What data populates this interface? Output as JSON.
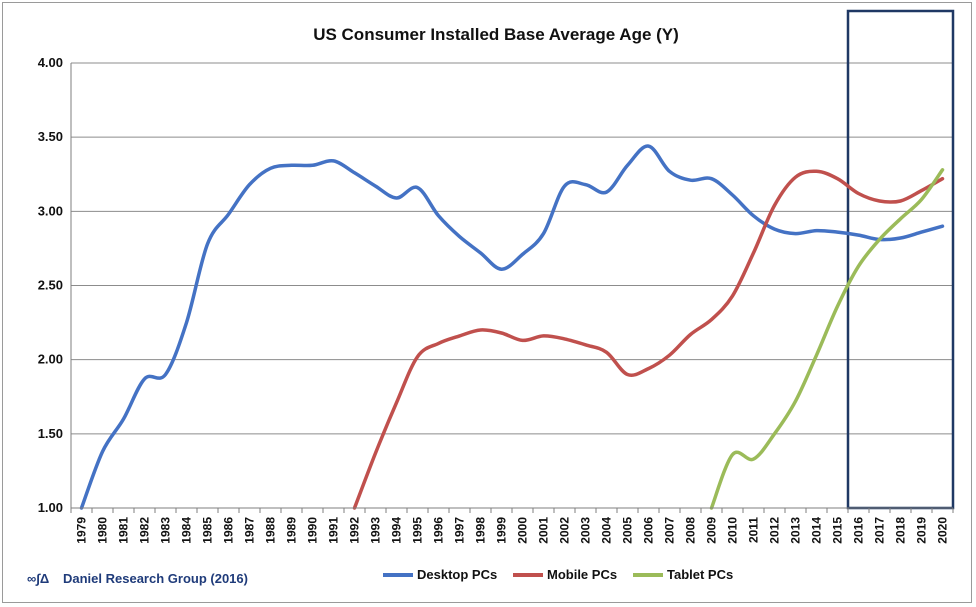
{
  "chart_data": {
    "type": "line",
    "title": "US Consumer Installed Base Average Age (Y)",
    "ylim": [
      1.0,
      4.0
    ],
    "yticks": [
      "1.00",
      "1.50",
      "2.00",
      "2.50",
      "3.00",
      "3.50",
      "4.00"
    ],
    "ytick_values": [
      1.0,
      1.5,
      2.0,
      2.5,
      3.0,
      3.5,
      4.0
    ],
    "x": [
      "1979",
      "1980",
      "1981",
      "1982",
      "1983",
      "1984",
      "1985",
      "1986",
      "1987",
      "1988",
      "1989",
      "1990",
      "1991",
      "1992",
      "1993",
      "1994",
      "1995",
      "1996",
      "1997",
      "1998",
      "1999",
      "2000",
      "2001",
      "2002",
      "2003",
      "2004",
      "2005",
      "2006",
      "2007",
      "2008",
      "2009",
      "2010",
      "2011",
      "2012",
      "2013",
      "2014",
      "2015",
      "2016",
      "2017",
      "2018",
      "2019",
      "2020"
    ],
    "grid": "horizontal",
    "legend_placement": "bottom",
    "highlight_range": [
      "2016",
      "2020"
    ],
    "credit": "Daniel Research Group (2016)",
    "credit_logo": "∞∫Δ",
    "series": [
      {
        "name": "Desktop PCs",
        "color": "#4472c4",
        "values": [
          1.0,
          1.38,
          1.6,
          1.87,
          1.9,
          2.25,
          2.78,
          2.98,
          3.18,
          3.29,
          3.31,
          3.31,
          3.34,
          3.26,
          3.17,
          3.09,
          3.16,
          2.97,
          2.83,
          2.72,
          2.61,
          2.71,
          2.85,
          3.17,
          3.18,
          3.13,
          3.31,
          3.44,
          3.27,
          3.21,
          3.22,
          3.11,
          2.97,
          2.88,
          2.85,
          2.87,
          2.86,
          2.84,
          2.81,
          2.82,
          2.86,
          2.9
        ]
      },
      {
        "name": "Mobile PCs",
        "color": "#c0504d",
        "values": [
          null,
          null,
          null,
          null,
          null,
          null,
          null,
          null,
          null,
          null,
          null,
          null,
          null,
          1.0,
          1.37,
          1.71,
          2.02,
          2.11,
          2.16,
          2.2,
          2.18,
          2.13,
          2.16,
          2.14,
          2.1,
          2.05,
          1.9,
          1.94,
          2.03,
          2.17,
          2.27,
          2.43,
          2.72,
          3.04,
          3.23,
          3.27,
          3.22,
          3.12,
          3.07,
          3.07,
          3.14,
          3.22
        ]
      },
      {
        "name": "Tablet PCs",
        "color": "#9bbb59",
        "values": [
          null,
          null,
          null,
          null,
          null,
          null,
          null,
          null,
          null,
          null,
          null,
          null,
          null,
          null,
          null,
          null,
          null,
          null,
          null,
          null,
          null,
          null,
          null,
          null,
          null,
          null,
          null,
          null,
          null,
          null,
          1.0,
          1.36,
          1.33,
          1.5,
          1.72,
          2.03,
          2.36,
          2.63,
          2.81,
          2.95,
          3.08,
          3.28
        ]
      }
    ]
  }
}
